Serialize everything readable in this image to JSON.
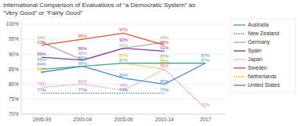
{
  "chart_data": {
    "type": "line",
    "title": "International Comparison of Evaluations of “a Democratic System” as\n“Very Good” or “Fairly Good”",
    "categories": [
      "1995-99",
      "2000-04",
      "2005-09",
      "2010-14",
      "2017"
    ],
    "series": [
      {
        "name": "Australia",
        "color": "#4dab8a",
        "line_style": "solid",
        "values": [
          85,
          86,
          87,
          87,
          87
        ],
        "value_labels": [
          "85%",
          "86%",
          "87%",
          "87%",
          "87%"
        ]
      },
      {
        "name": "New Zealand",
        "color": "#4472a8",
        "line_style": "dotted",
        "values": [
          77,
          77,
          77,
          77,
          null
        ],
        "value_labels": [
          "77%",
          "77%",
          "77%",
          "77%",
          null
        ]
      },
      {
        "name": "Germany",
        "color": "#aaaaaa",
        "line_style": "solid",
        "values": [
          94,
          88,
          92,
          94,
          null
        ],
        "value_labels": [
          "94%",
          "88%",
          "92%",
          "94%",
          null
        ]
      },
      {
        "name": "Spain",
        "color": "#7b3faa",
        "line_style": "solid",
        "values": [
          89,
          88,
          92,
          91,
          null
        ],
        "value_labels": [
          "89%",
          "88%",
          "92%",
          "91%",
          null
        ]
      },
      {
        "name": "Japan",
        "color": "#e080b0",
        "line_style": "dotted",
        "values": [
          79,
          80,
          78,
          85,
          72
        ],
        "value_labels": [
          "79%",
          "80%",
          "78%",
          "85%",
          "72%"
        ]
      },
      {
        "name": "Sweden",
        "color": "#d94f35",
        "line_style": "solid",
        "values": [
          93,
          95,
          97,
          93,
          null
        ],
        "value_labels": [
          "93%",
          "95%",
          "97%",
          "93%",
          null
        ]
      },
      {
        "name": "Netherlands",
        "color": "#c8b400",
        "line_style": "dotted",
        "values": [
          84,
          null,
          87,
          85,
          null
        ],
        "value_labels": [
          "84%",
          null,
          "87%",
          "85%",
          null
        ]
      },
      {
        "name": "United States",
        "color": "#4488cc",
        "line_style": "solid",
        "values": [
          84,
          86,
          82,
          80,
          87
        ],
        "value_labels": [
          "84%",
          "86%",
          "82%",
          "80%",
          "87%"
        ]
      }
    ],
    "ylim": [
      70,
      101
    ],
    "yticks": [
      {
        "value": 70,
        "label": "70%"
      },
      {
        "value": 75,
        "label": "75%"
      },
      {
        "value": 80,
        "label": "80%"
      },
      {
        "value": 85,
        "label": "85%"
      },
      {
        "value": 90,
        "label": "90%"
      },
      {
        "value": 95,
        "label": "95%"
      },
      {
        "value": 100,
        "label": "100%"
      }
    ],
    "grid": true,
    "legend": "right",
    "data_labels": true
  }
}
